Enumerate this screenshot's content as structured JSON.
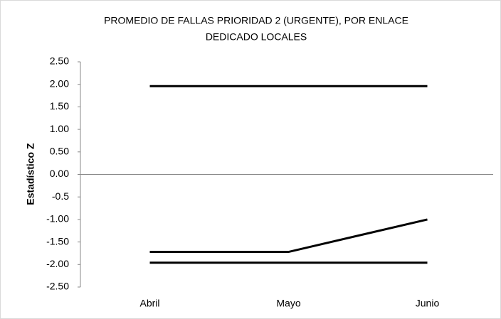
{
  "chart_data": {
    "type": "line",
    "title": [
      "PROMEDIO DE FALLAS PRIORIDAD 2 (URGENTE), POR ENLACE",
      "DEDICADO LOCALES"
    ],
    "y_label": "Estadístico Z",
    "categories": [
      "Abril",
      "Mayo",
      "Junio"
    ],
    "series": [
      {
        "color": "#000000",
        "values": [
          1.96,
          1.96,
          1.96
        ]
      },
      {
        "color": "#000000",
        "values": [
          -1.72,
          -1.72,
          -1.0
        ]
      },
      {
        "color": "#000000",
        "values": [
          -1.96,
          -1.96,
          -1.96
        ]
      }
    ],
    "ylim": [
      -2.5,
      2.5
    ],
    "yticks": [
      {
        "value": 2.5,
        "label": "2.50"
      },
      {
        "value": 2,
        "label": "2.00"
      },
      {
        "value": 1.5,
        "label": "1.50"
      },
      {
        "value": 1,
        "label": "1.00"
      },
      {
        "value": 0.5,
        "label": "0.50"
      },
      {
        "value": 0,
        "label": "0.00"
      },
      -0.5,
      {
        "value": -1,
        "label": "-1.00"
      },
      {
        "value": -1.5,
        "label": "-1.50"
      },
      {
        "value": -2,
        "label": "-2.00"
      },
      {
        "value": -2.5,
        "label": "-2.50"
      }
    ],
    "grid": false
  }
}
